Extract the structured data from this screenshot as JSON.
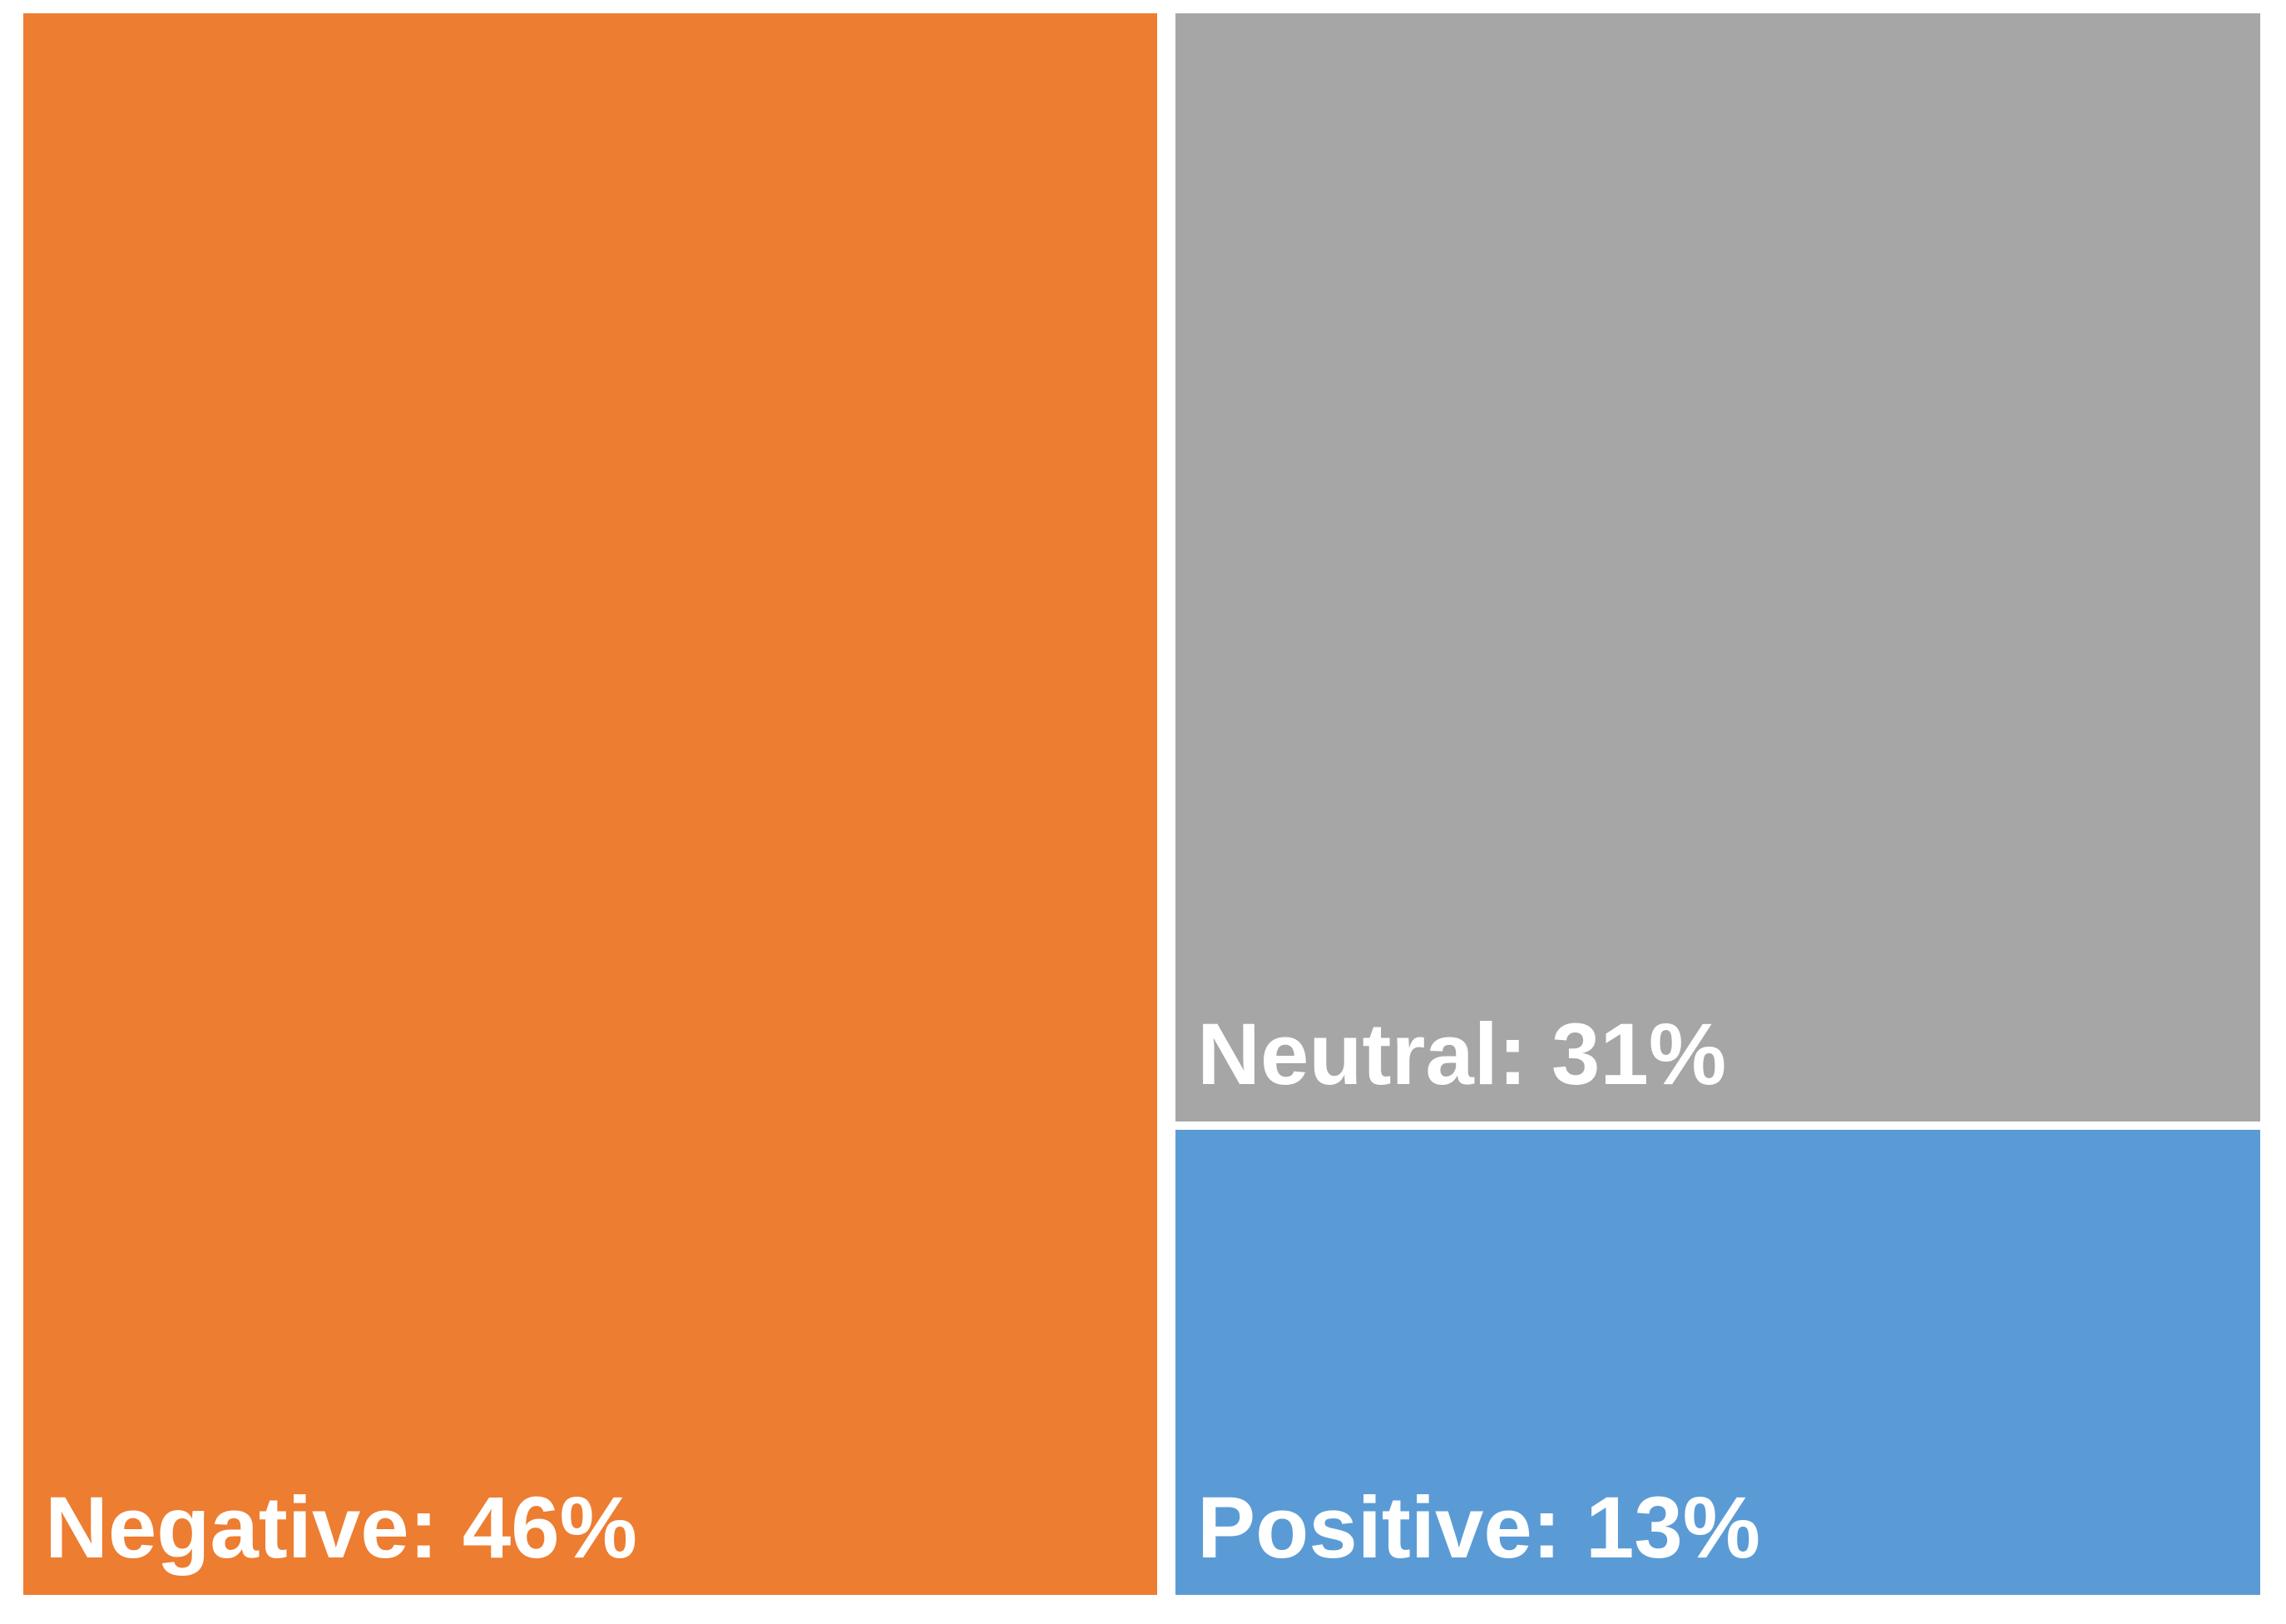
{
  "chart_data": {
    "type": "treemap",
    "title": "",
    "categories": [
      "Negative",
      "Neutral",
      "Positive"
    ],
    "values": [
      46,
      31,
      13
    ],
    "labels": [
      "Negative: 46%",
      "Neutral: 31%",
      "Positive: 13%"
    ],
    "colors": [
      "#ED7D31",
      "#A6A6A6",
      "#5B9BD5"
    ],
    "label_color": "#FFFFFF",
    "background": "#FFFFFF",
    "layout": {
      "left_column_categories": [
        "Negative"
      ],
      "right_column_categories": [
        "Neutral",
        "Positive"
      ],
      "label_position": "bottom-left",
      "legend": "none",
      "axes": "none"
    }
  }
}
